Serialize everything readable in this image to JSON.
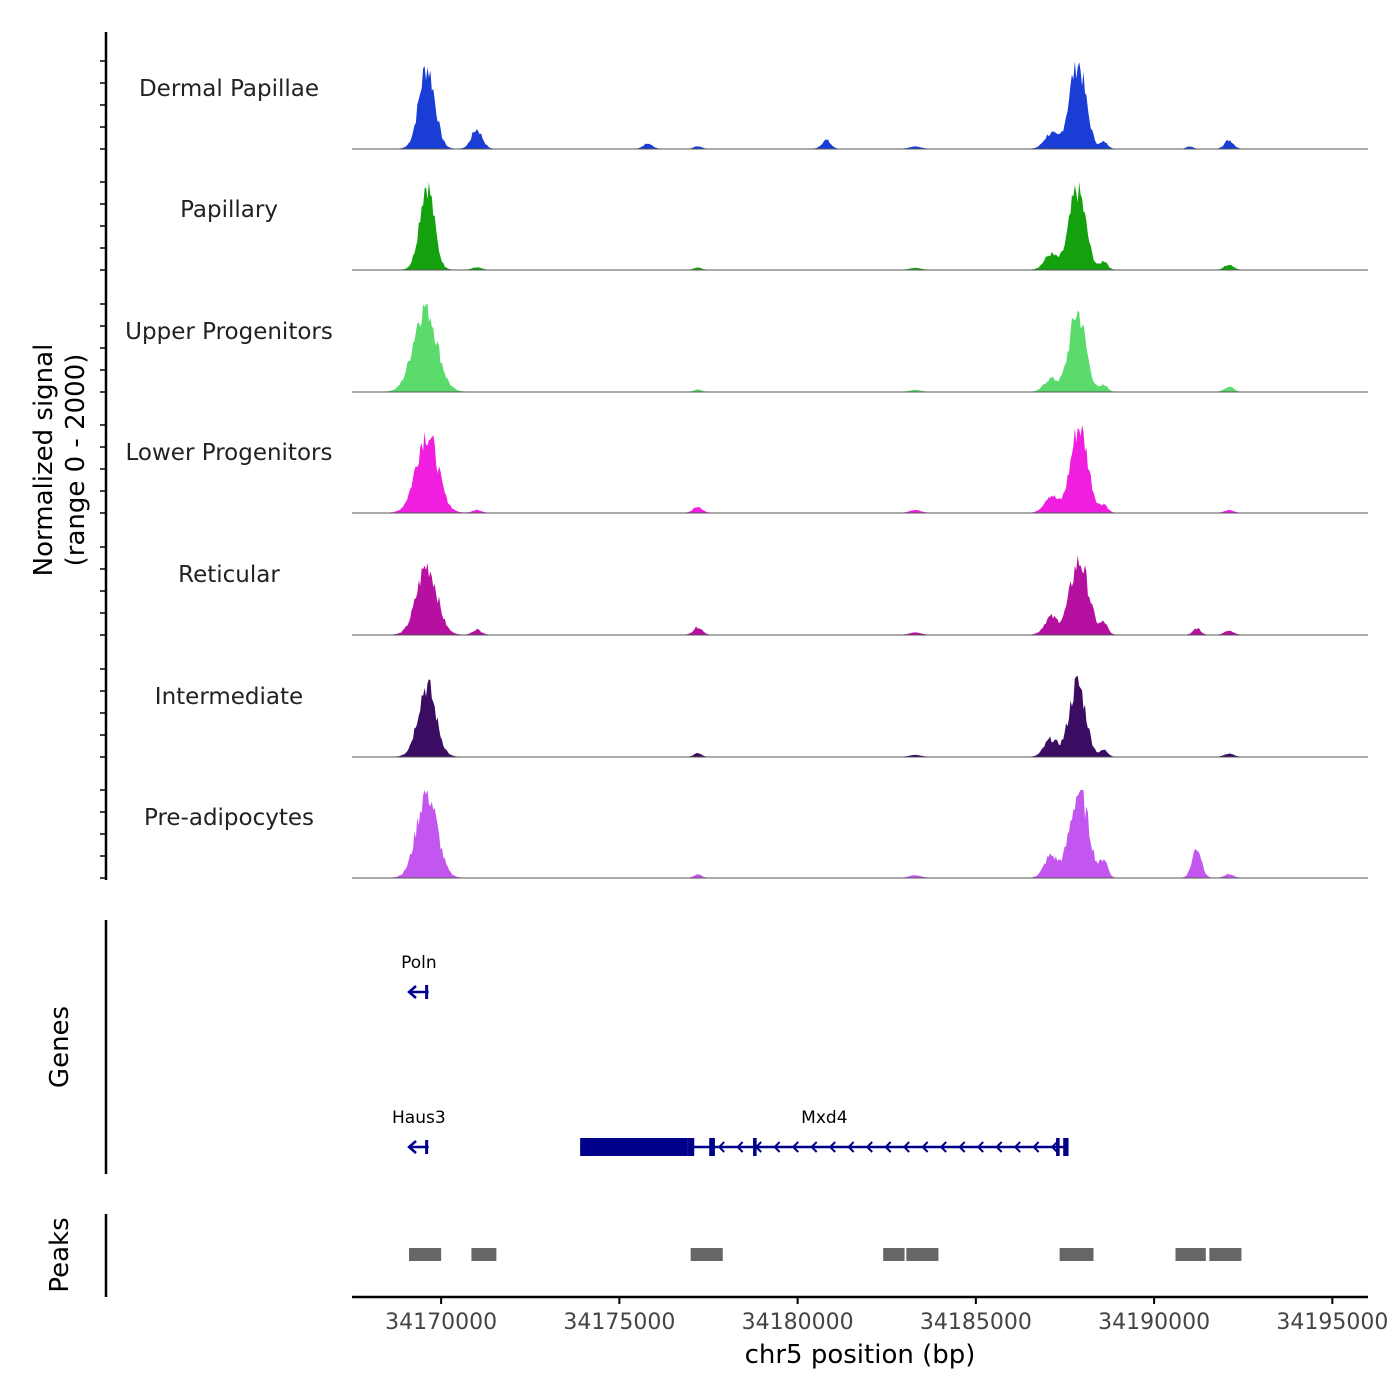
{
  "chart_data": {
    "type": "area",
    "title": "",
    "xlabel": "chr5 position (bp)",
    "ylabel": "Normalized signal\n(range 0 - 2000)",
    "x_range": [
      34167500,
      34196000
    ],
    "x_ticks": [
      34170000,
      34175000,
      34180000,
      34185000,
      34190000,
      34195000
    ],
    "x_tick_labels": [
      "34170000",
      "34175000",
      "34180000",
      "34185000",
      "34190000",
      "34195000"
    ],
    "y_range": [
      0,
      2000
    ],
    "tracks": [
      {
        "name": "Dermal Papillae",
        "color": "#1a3dd6",
        "peaks": [
          [
            34169600,
            1900,
            220
          ],
          [
            34171000,
            450,
            150
          ],
          [
            34175800,
            120,
            120
          ],
          [
            34177200,
            60,
            100
          ],
          [
            34180800,
            200,
            120
          ],
          [
            34183300,
            50,
            150
          ],
          [
            34187100,
            350,
            180
          ],
          [
            34187850,
            2000,
            230
          ],
          [
            34188600,
            150,
            100
          ],
          [
            34191000,
            60,
            80
          ],
          [
            34192100,
            200,
            120
          ]
        ]
      },
      {
        "name": "Papillary",
        "color": "#13a10e",
        "peaks": [
          [
            34169600,
            2000,
            200
          ],
          [
            34171000,
            60,
            120
          ],
          [
            34177200,
            50,
            100
          ],
          [
            34183300,
            40,
            150
          ],
          [
            34187100,
            350,
            180
          ],
          [
            34187850,
            1850,
            230
          ],
          [
            34188600,
            200,
            100
          ],
          [
            34192100,
            120,
            120
          ]
        ]
      },
      {
        "name": "Upper Progenitors",
        "color": "#5adb6c",
        "peaks": [
          [
            34169550,
            2000,
            320
          ],
          [
            34177200,
            50,
            100
          ],
          [
            34183300,
            40,
            150
          ],
          [
            34187100,
            300,
            180
          ],
          [
            34187850,
            1850,
            230
          ],
          [
            34188600,
            150,
            100
          ],
          [
            34192100,
            120,
            120
          ]
        ]
      },
      {
        "name": "Lower Progenitors",
        "color": "#f01edf",
        "peaks": [
          [
            34169600,
            1850,
            300
          ],
          [
            34171000,
            60,
            120
          ],
          [
            34177200,
            150,
            120
          ],
          [
            34183300,
            60,
            150
          ],
          [
            34187100,
            400,
            180
          ],
          [
            34187900,
            2000,
            240
          ],
          [
            34188600,
            180,
            100
          ],
          [
            34192100,
            60,
            120
          ]
        ]
      },
      {
        "name": "Reticular",
        "color": "#b5109f",
        "peaks": [
          [
            34169600,
            1600,
            280
          ],
          [
            34171000,
            120,
            120
          ],
          [
            34177200,
            180,
            120
          ],
          [
            34183300,
            50,
            150
          ],
          [
            34187100,
            400,
            180
          ],
          [
            34187900,
            1700,
            260
          ],
          [
            34188600,
            250,
            100
          ],
          [
            34191200,
            150,
            100
          ],
          [
            34192100,
            100,
            120
          ]
        ]
      },
      {
        "name": "Intermediate",
        "color": "#3a0c62",
        "peaks": [
          [
            34169600,
            1650,
            250
          ],
          [
            34177200,
            80,
            100
          ],
          [
            34183300,
            40,
            150
          ],
          [
            34187100,
            400,
            180
          ],
          [
            34187850,
            1700,
            230
          ],
          [
            34188600,
            150,
            100
          ],
          [
            34192100,
            80,
            120
          ]
        ]
      },
      {
        "name": "Pre-adipocytes",
        "color": "#c456f0",
        "peaks": [
          [
            34169600,
            2000,
            280
          ],
          [
            34177200,
            80,
            100
          ],
          [
            34183300,
            60,
            150
          ],
          [
            34187100,
            500,
            180
          ],
          [
            34187900,
            2000,
            260
          ],
          [
            34188600,
            400,
            100
          ],
          [
            34191200,
            700,
            130
          ],
          [
            34192100,
            80,
            120
          ]
        ]
      }
    ],
    "genes": [
      {
        "name": "Poln",
        "start": 34169100,
        "end": 34169650,
        "strand": "-",
        "row": 1
      },
      {
        "name": "Haus3",
        "start": 34169100,
        "end": 34169650,
        "strand": "-",
        "row": 2
      },
      {
        "name": "Mxd4",
        "start": 34173900,
        "end": 34187600,
        "strand": "-",
        "row": 2,
        "exons": [
          [
            34173900,
            34176900
          ],
          [
            34176900,
            34177100
          ],
          [
            34177520,
            34177680
          ],
          [
            34178750,
            34178850
          ],
          [
            34187250,
            34187350
          ],
          [
            34187450,
            34187600
          ]
        ]
      }
    ],
    "peaks_track": [
      [
        34169100,
        34170000
      ],
      [
        34170850,
        34171550
      ],
      [
        34177000,
        34177900
      ],
      [
        34182400,
        34183000
      ],
      [
        34183050,
        34183950
      ],
      [
        34187350,
        34188300
      ],
      [
        34190600,
        34191450
      ],
      [
        34191550,
        34192450
      ]
    ],
    "panel_labels": {
      "genes": "Genes",
      "peaks": "Peaks"
    }
  }
}
